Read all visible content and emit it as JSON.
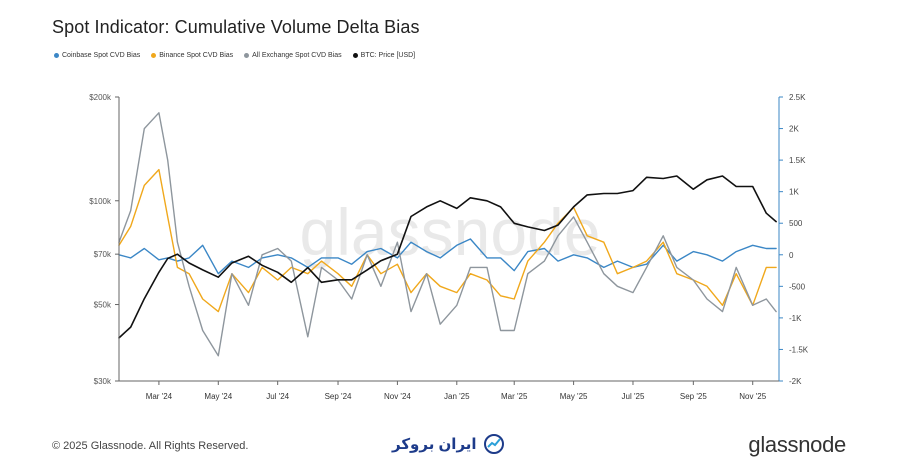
{
  "title": "Spot Indicator: Cumulative Volume Delta Bias",
  "legend": [
    {
      "label": "Coinbase Spot CVD Bias",
      "color": "#3b87c6"
    },
    {
      "label": "Binance Spot CVD Bias",
      "color": "#f0a81c"
    },
    {
      "label": "All Exchange Spot CVD Bias",
      "color": "#8e969d"
    },
    {
      "label": "BTC: Price [USD]",
      "color": "#111111"
    }
  ],
  "watermark": "glassnode",
  "footer": {
    "copyright": "© 2025 Glassnode. All Rights Reserved.",
    "partner": "ایران بروکر",
    "brand": "glassnode"
  },
  "chart_data": {
    "type": "line",
    "title": "Spot Indicator: Cumulative Volume Delta Bias",
    "x_ticks": [
      "Mar '24",
      "May '24",
      "Jul '24",
      "Sep '24",
      "Nov '24",
      "Jan '25",
      "Mar '25",
      "May '25",
      "Jul '25",
      "Sep '25",
      "Nov '25"
    ],
    "y_left": {
      "scale": "log",
      "ticks": [
        "$30k",
        "$50k",
        "$70k",
        "$100k",
        "$200k"
      ],
      "tick_values": [
        30000,
        50000,
        70000,
        100000,
        200000
      ],
      "range": [
        30000,
        200000
      ],
      "color": "#555555"
    },
    "y_right": {
      "scale": "linear",
      "ticks": [
        "-2K",
        "-1.5K",
        "-1K",
        "-500",
        "0",
        "500",
        "1K",
        "1.5K",
        "2K",
        "2.5K"
      ],
      "tick_values": [
        -2000,
        -1500,
        -1000,
        -500,
        0,
        500,
        1000,
        1500,
        2000,
        2500
      ],
      "range": [
        -2000,
        2500
      ],
      "color": "#3b87c6"
    },
    "x": [
      "2024-01-20",
      "2024-02-01",
      "2024-02-15",
      "2024-03-01",
      "2024-03-10",
      "2024-03-20",
      "2024-04-01",
      "2024-04-15",
      "2024-05-01",
      "2024-05-15",
      "2024-06-01",
      "2024-06-15",
      "2024-07-01",
      "2024-07-15",
      "2024-08-01",
      "2024-08-15",
      "2024-09-01",
      "2024-09-15",
      "2024-10-01",
      "2024-10-15",
      "2024-11-01",
      "2024-11-15",
      "2024-12-01",
      "2024-12-15",
      "2025-01-01",
      "2025-01-15",
      "2025-02-01",
      "2025-02-15",
      "2025-03-01",
      "2025-03-15",
      "2025-04-01",
      "2025-04-15",
      "2025-05-01",
      "2025-05-15",
      "2025-06-01",
      "2025-06-15",
      "2025-07-01",
      "2025-07-15",
      "2025-08-01",
      "2025-08-15",
      "2025-09-01",
      "2025-09-15",
      "2025-10-01",
      "2025-10-15",
      "2025-11-01",
      "2025-11-15",
      "2025-11-25"
    ],
    "series": [
      {
        "name": "Coinbase Spot CVD Bias",
        "axis": "right",
        "color": "#3b87c6",
        "values": [
          0,
          -50,
          100,
          -80,
          -50,
          -100,
          -50,
          150,
          -300,
          -100,
          -200,
          -50,
          0,
          -50,
          -200,
          -50,
          -50,
          -150,
          50,
          100,
          -50,
          200,
          50,
          -50,
          150,
          250,
          -50,
          -50,
          -250,
          50,
          100,
          -100,
          0,
          -50,
          -200,
          -100,
          -200,
          -150,
          150,
          -100,
          50,
          0,
          -100,
          50,
          150,
          100,
          100
        ]
      },
      {
        "name": "Binance Spot CVD Bias",
        "axis": "right",
        "color": "#f0a81c",
        "values": [
          150,
          450,
          1100,
          1350,
          600,
          -200,
          -300,
          -700,
          -900,
          -300,
          -600,
          -200,
          -400,
          -200,
          -300,
          -100,
          -300,
          -500,
          0,
          -300,
          -150,
          -600,
          -300,
          -500,
          -600,
          -300,
          -400,
          -650,
          -700,
          -100,
          200,
          500,
          750,
          300,
          200,
          -300,
          -200,
          -100,
          200,
          -300,
          -400,
          -500,
          -800,
          -300,
          -800,
          -200,
          -200
        ]
      },
      {
        "name": "All Exchange Spot CVD Bias",
        "axis": "right",
        "color": "#8e969d",
        "values": [
          200,
          700,
          2000,
          2250,
          1500,
          200,
          -500,
          -1200,
          -1600,
          -300,
          -800,
          0,
          100,
          -100,
          -1300,
          -200,
          -400,
          -700,
          0,
          -500,
          200,
          -900,
          -300,
          -1100,
          -800,
          -200,
          -200,
          -1200,
          -1200,
          -300,
          -100,
          300,
          600,
          200,
          -300,
          -500,
          -600,
          -200,
          300,
          -200,
          -400,
          -700,
          -900,
          -200,
          -800,
          -700,
          -900
        ]
      },
      {
        "name": "BTC: Price [USD]",
        "axis": "left",
        "color": "#111111",
        "values": [
          40000,
          43000,
          52000,
          62000,
          68000,
          70000,
          66000,
          63000,
          60000,
          66000,
          69000,
          65000,
          62000,
          58000,
          64000,
          58000,
          59000,
          59000,
          63000,
          67000,
          70000,
          90000,
          96000,
          100000,
          95000,
          102000,
          100000,
          96000,
          86000,
          84000,
          82000,
          85000,
          96000,
          104000,
          105000,
          105000,
          107000,
          117000,
          116000,
          118000,
          108000,
          115000,
          118000,
          110000,
          110000,
          92000,
          87000
        ]
      }
    ]
  }
}
